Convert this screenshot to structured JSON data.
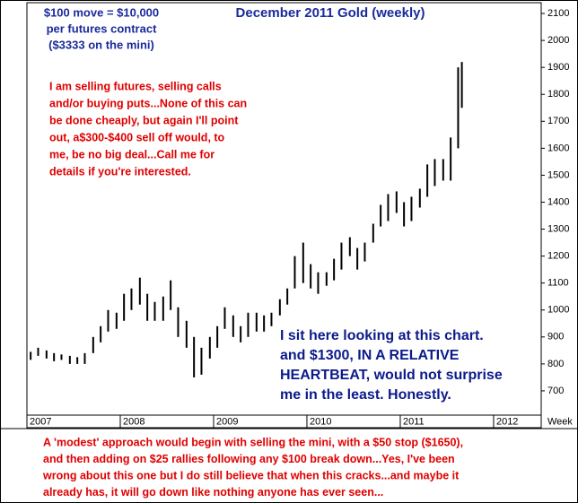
{
  "chart_data": {
    "type": "hilo",
    "title": "December 2011 Gold (weekly)",
    "title_color": "#1a2a9c",
    "color": "#000000",
    "x": [
      2007.04,
      2007.12,
      2007.21,
      2007.29,
      2007.37,
      2007.46,
      2007.54,
      2007.62,
      2007.71,
      2007.79,
      2007.87,
      2007.96,
      2008.04,
      2008.12,
      2008.21,
      2008.29,
      2008.37,
      2008.46,
      2008.54,
      2008.62,
      2008.71,
      2008.79,
      2008.87,
      2008.96,
      2009.04,
      2009.12,
      2009.21,
      2009.29,
      2009.37,
      2009.46,
      2009.54,
      2009.62,
      2009.71,
      2009.79,
      2009.87,
      2009.96,
      2010.04,
      2010.12,
      2010.21,
      2010.29,
      2010.37,
      2010.46,
      2010.54,
      2010.62,
      2010.71,
      2010.79,
      2010.87,
      2010.96,
      2011.04,
      2011.12,
      2011.21,
      2011.29,
      2011.37,
      2011.46,
      2011.54,
      2011.62,
      2011.66
    ],
    "series": [
      {
        "name": "High",
        "values": [
          845,
          860,
          850,
          840,
          835,
          830,
          825,
          840,
          900,
          940,
          1000,
          990,
          1060,
          1080,
          1120,
          1060,
          1030,
          1050,
          1110,
          1010,
          960,
          900,
          860,
          900,
          940,
          1010,
          980,
          940,
          990,
          990,
          980,
          990,
          1040,
          1080,
          1200,
          1250,
          1170,
          1140,
          1140,
          1190,
          1250,
          1270,
          1230,
          1250,
          1320,
          1390,
          1430,
          1440,
          1400,
          1420,
          1450,
          1540,
          1560,
          1560,
          1640,
          1900,
          1920
        ]
      },
      {
        "name": "Low",
        "values": [
          815,
          830,
          820,
          810,
          815,
          800,
          800,
          800,
          840,
          880,
          920,
          930,
          960,
          1000,
          1020,
          960,
          960,
          960,
          1000,
          900,
          860,
          750,
          760,
          820,
          860,
          930,
          900,
          880,
          900,
          920,
          920,
          940,
          980,
          1020,
          1080,
          1100,
          1080,
          1060,
          1090,
          1110,
          1150,
          1200,
          1150,
          1180,
          1250,
          1310,
          1330,
          1360,
          1310,
          1330,
          1380,
          1420,
          1460,
          1480,
          1480,
          1600,
          1750
        ]
      }
    ],
    "xlim": [
      2007,
      2012.51
    ],
    "xticks": [
      2007,
      2008,
      2009,
      2010,
      2011,
      2012
    ],
    "ylim": [
      610,
      2140
    ],
    "yticks": [
      700,
      800,
      900,
      1000,
      1100,
      1200,
      1300,
      1400,
      1500,
      1600,
      1700,
      1800,
      1900,
      2000,
      2100
    ],
    "x_axis_label": "Week",
    "annotations": [
      {
        "color": "#1a2a9c",
        "lines": [
          "$100 move = $10,000",
          "per futures contract",
          "($3333 on the mini)"
        ]
      },
      {
        "color": "#e00000",
        "lines": [
          "I am selling futures, selling calls",
          "and/or buying puts...None of this can",
          "be done cheaply, but again I'll point",
          "out, a$300-$400 sell off would, to",
          "me, be no big deal...Call me for",
          "details if you're interested."
        ]
      },
      {
        "color": "#0b1a8c",
        "lines": [
          "I sit here looking at this chart.",
          "and $1300, IN A RELATIVE",
          "HEARTBEAT, would not surprise",
          "me in the least. Honestly."
        ]
      },
      {
        "color": "#e00000",
        "lines": [
          "A 'modest' approach would begin with selling the mini, with a $50 stop ($1650),",
          "and then adding on $25 rallies following any $100 break down...Yes, I've been",
          "wrong about this one but I do still believe that when this cracks...and maybe it",
          "already has, it will go down like nothing anyone has ever seen..."
        ]
      }
    ]
  }
}
